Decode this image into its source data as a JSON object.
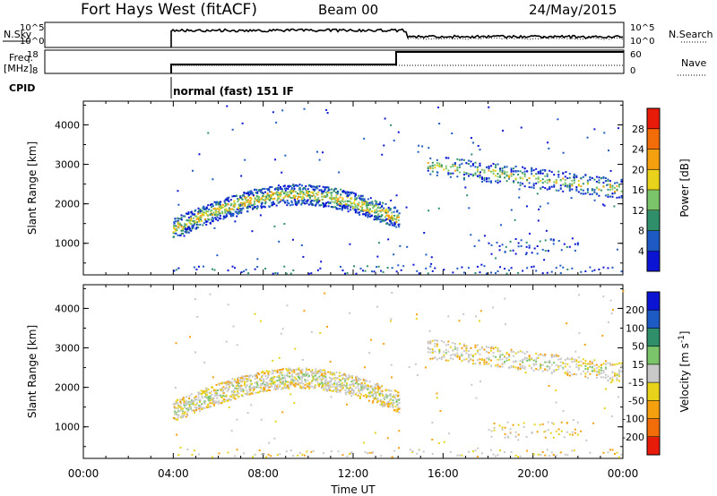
{
  "header": {
    "title": "Fort Hays West (fitACF)",
    "beam": "Beam 00",
    "date": "24/May/2015"
  },
  "top_panels": {
    "nsky_label": "N.Sky",
    "nsky_ticks": [
      "10^5",
      "10^0"
    ],
    "nsearch_label": "N.Search",
    "nsearch_ticks": [
      "10^5",
      "10^0"
    ],
    "freq_label": "Freq.",
    "freq_unit": "[MHz]",
    "freq_ticks": [
      "18",
      "8"
    ],
    "nave_label": "Nave",
    "nave_ticks": [
      "60",
      "0"
    ],
    "cpid_label": "CPID",
    "cpid_text": "normal (fast) 151 IF"
  },
  "chart_data": [
    {
      "type": "heatmap",
      "name": "power",
      "ylabel": "Slant Range [km]",
      "y_ticks": [
        1000,
        2000,
        3000,
        4000
      ],
      "ylim": [
        200,
        4600
      ],
      "colorbar_label": "Power [dB]",
      "colorbar_ticks": [
        "4",
        "8",
        "12",
        "16",
        "20",
        "24",
        "28"
      ],
      "colors": [
        "#0a14d2",
        "#1e5ac3",
        "#2f8f6b",
        "#7bc46a",
        "#e8d21a",
        "#f5a00f",
        "#f26c0a",
        "#e81a0a"
      ]
    },
    {
      "type": "heatmap",
      "name": "velocity",
      "ylabel": "Slant Range [km]",
      "xlabel": "Time UT",
      "x_ticks": [
        "00:00",
        "04:00",
        "08:00",
        "12:00",
        "16:00",
        "20:00",
        "00:00"
      ],
      "y_ticks": [
        1000,
        2000,
        3000,
        4000
      ],
      "ylim": [
        200,
        4600
      ],
      "colorbar_label": "Velocity [m s^-1]",
      "colorbar_ticks": [
        "-200",
        "-100",
        "-50",
        "-15",
        "15",
        "50",
        "100",
        "200"
      ],
      "colors": [
        "#e81a0a",
        "#f26c0a",
        "#f5a00f",
        "#e8d21a",
        "#c8c8c8",
        "#7bc46a",
        "#2f8f6b",
        "#1e5ac3",
        "#0a14d2"
      ]
    }
  ]
}
